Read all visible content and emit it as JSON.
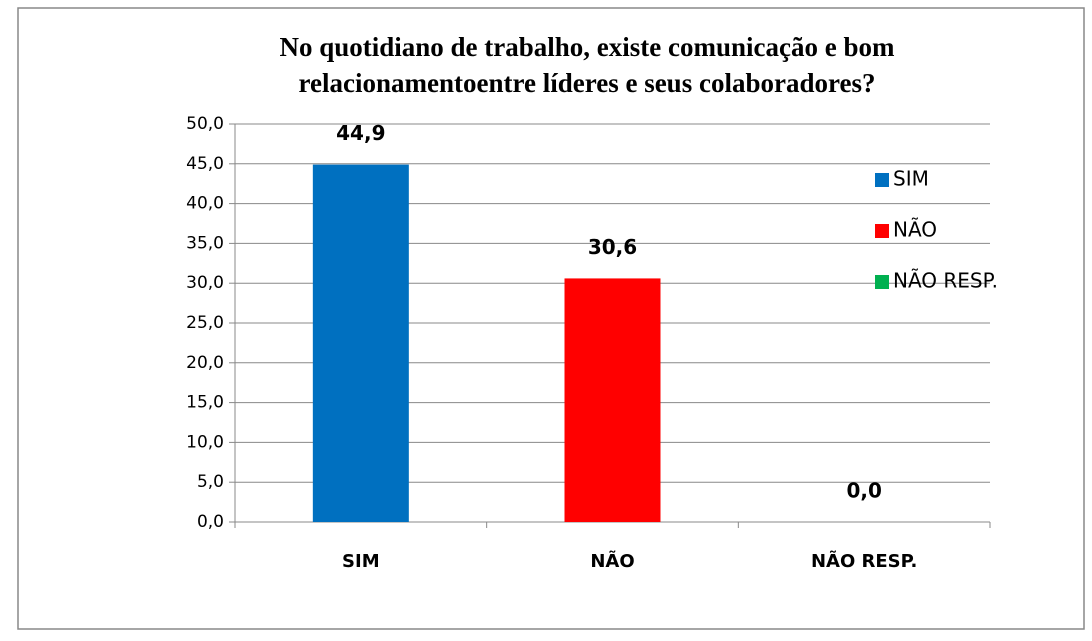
{
  "chart_data": {
    "type": "bar",
    "title": [
      "No quotidiano de trabalho, existe comunicação e bom",
      "relacionamentoentre líderes e seus colaboradores?"
    ],
    "categories": [
      "SIM",
      "NÃO",
      "NÃO RESP."
    ],
    "values": [
      44.9,
      30.6,
      0.0
    ],
    "value_labels": [
      "44,9",
      "30,6",
      "0,0"
    ],
    "colors": [
      "#0070c0",
      "#ff0000",
      "#00b050"
    ],
    "ylim": [
      0,
      50
    ],
    "yticks": [
      {
        "value": 0,
        "label": "0,0"
      },
      {
        "value": 5,
        "label": "5,0"
      },
      {
        "value": 10,
        "label": "10,0"
      },
      {
        "value": 15,
        "label": "15,0"
      },
      {
        "value": 20,
        "label": "20,0"
      },
      {
        "value": 25,
        "label": "25,0"
      },
      {
        "value": 30,
        "label": "30,0"
      },
      {
        "value": 35,
        "label": "35,0"
      },
      {
        "value": 40,
        "label": "40,0"
      },
      {
        "value": 45,
        "label": "45,0"
      },
      {
        "value": 50,
        "label": "50,0"
      }
    ],
    "grid": true,
    "legend": "right"
  }
}
